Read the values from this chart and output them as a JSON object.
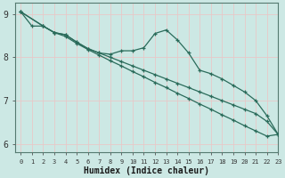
{
  "xlabel": "Humidex (Indice chaleur)",
  "bg_color": "#cce8e4",
  "grid_color": "#ddeeeb",
  "line_color": "#2a6b5a",
  "xlim": [
    -0.5,
    23
  ],
  "ylim": [
    5.8,
    9.25
  ],
  "yticks": [
    6,
    7,
    8,
    9
  ],
  "xticks": [
    0,
    1,
    2,
    3,
    4,
    5,
    6,
    7,
    8,
    9,
    10,
    11,
    12,
    13,
    14,
    15,
    16,
    17,
    18,
    19,
    20,
    21,
    22,
    23
  ],
  "line1_x": [
    0,
    1,
    2,
    3,
    4,
    5,
    6,
    7,
    8,
    9,
    10,
    11,
    12,
    13,
    14,
    15,
    16,
    17,
    18,
    19,
    20,
    21,
    22,
    23
  ],
  "line1_y": [
    9.05,
    8.72,
    8.72,
    8.57,
    8.52,
    8.35,
    8.2,
    8.1,
    8.07,
    8.15,
    8.15,
    8.22,
    8.55,
    8.63,
    8.4,
    8.1,
    7.7,
    7.62,
    7.5,
    7.35,
    7.2,
    7.0,
    6.65,
    6.22
  ],
  "line2_x": [
    0,
    2,
    3,
    4,
    5,
    6,
    7,
    8,
    9,
    10,
    11,
    12,
    13,
    14,
    15,
    16,
    17,
    18,
    19,
    20,
    21,
    22,
    23
  ],
  "line2_y": [
    9.05,
    8.72,
    8.57,
    8.52,
    8.35,
    8.2,
    8.1,
    8.0,
    7.9,
    7.8,
    7.7,
    7.6,
    7.5,
    7.4,
    7.3,
    7.2,
    7.1,
    7.0,
    6.9,
    6.8,
    6.7,
    6.52,
    6.22
  ],
  "line3_x": [
    0,
    2,
    3,
    4,
    5,
    6,
    7,
    8,
    9,
    10,
    11,
    12,
    13,
    14,
    15,
    16,
    17,
    18,
    19,
    20,
    21,
    22,
    23
  ],
  "line3_y": [
    9.05,
    8.72,
    8.57,
    8.48,
    8.32,
    8.18,
    8.05,
    7.92,
    7.8,
    7.67,
    7.55,
    7.42,
    7.3,
    7.17,
    7.05,
    6.92,
    6.8,
    6.67,
    6.55,
    6.42,
    6.3,
    6.18,
    6.22
  ]
}
